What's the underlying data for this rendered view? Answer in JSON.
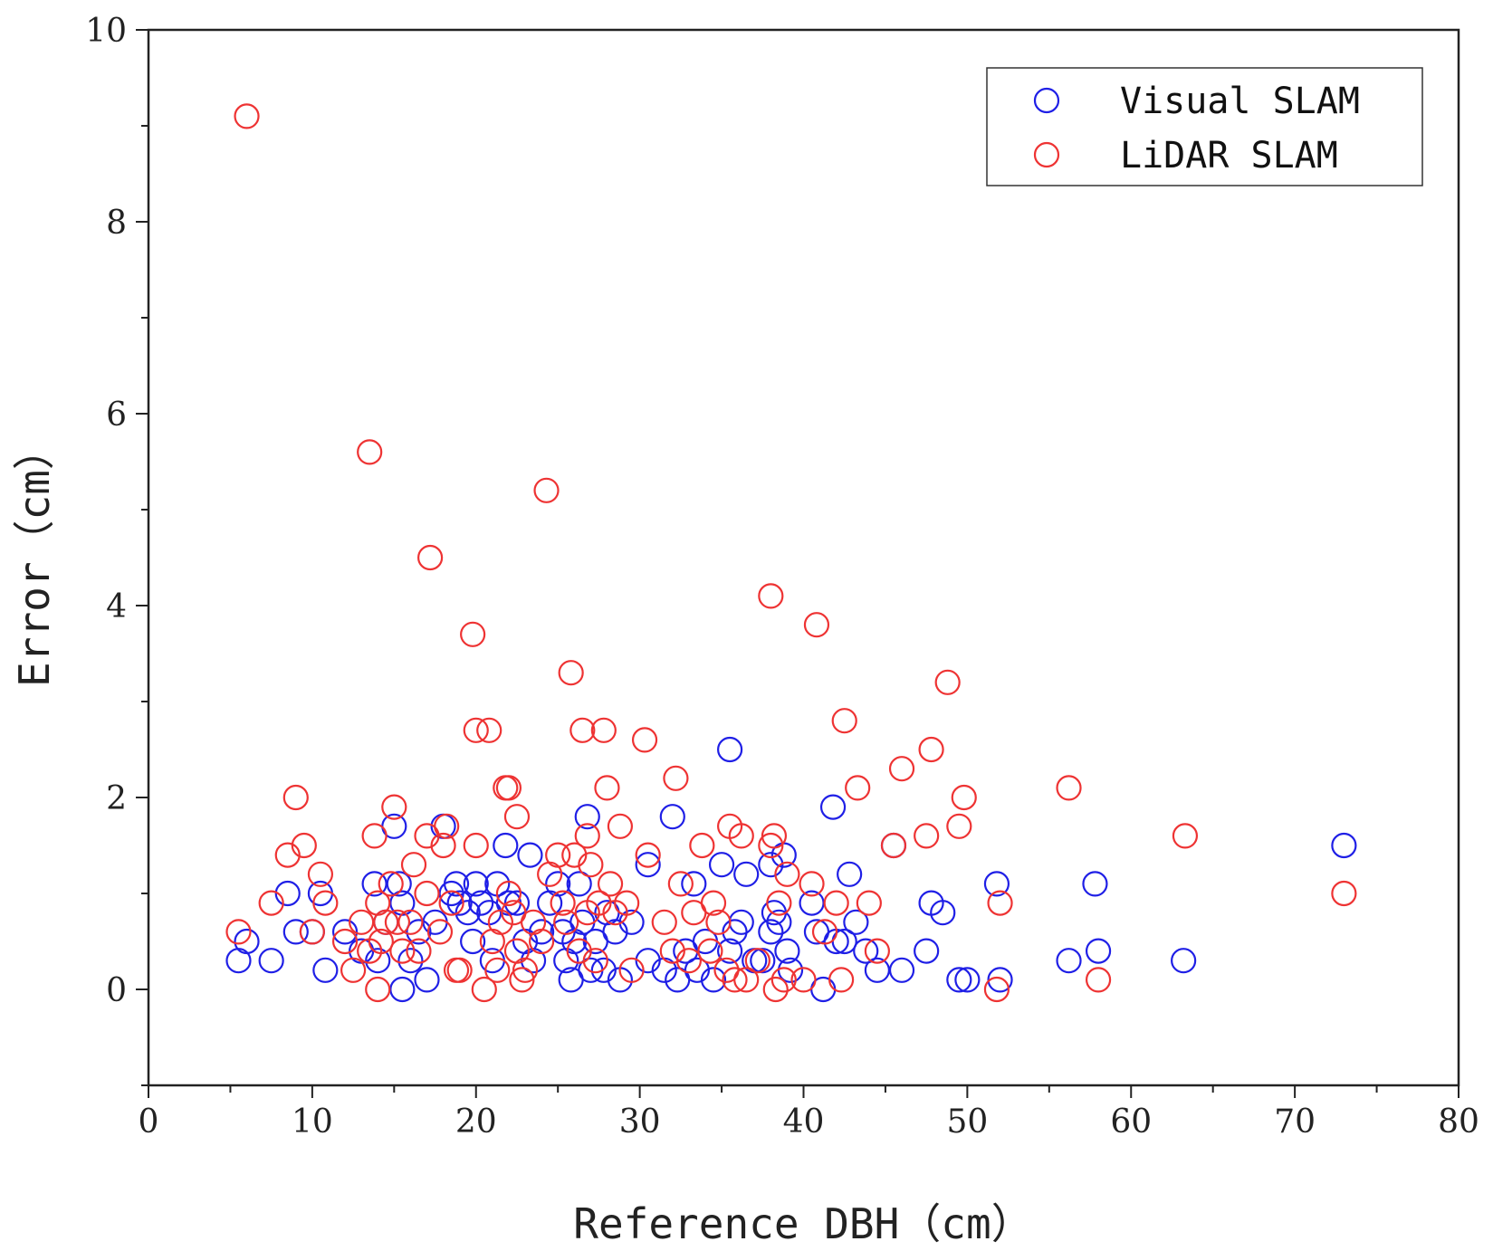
{
  "chart_data": {
    "type": "scatter",
    "title": "",
    "xlabel": "Reference DBH（cm）",
    "ylabel": "Error（cm）",
    "xlim": [
      0,
      80
    ],
    "ylim": [
      -1,
      10
    ],
    "x_ticks": [
      0,
      10,
      20,
      30,
      40,
      50,
      60,
      70,
      80
    ],
    "y_ticks": [
      0,
      2,
      4,
      6,
      8,
      10
    ],
    "x_tick_labels": [
      "0",
      "10",
      "20",
      "30",
      "40",
      "50",
      "60",
      "70",
      "80"
    ],
    "y_tick_labels": [
      "0",
      "2",
      "4",
      "6",
      "8",
      "10"
    ],
    "legend_position": "top-right",
    "series": [
      {
        "name": "Visual SLAM",
        "color": "#1f1fe6",
        "points": [
          [
            5.5,
            0.3
          ],
          [
            6.0,
            0.5
          ],
          [
            7.5,
            0.3
          ],
          [
            8.5,
            1.0
          ],
          [
            9.0,
            0.6
          ],
          [
            10.0,
            0.6
          ],
          [
            10.5,
            1.0
          ],
          [
            10.8,
            0.2
          ],
          [
            12.0,
            0.6
          ],
          [
            13.0,
            0.4
          ],
          [
            13.8,
            1.1
          ],
          [
            14.0,
            0.3
          ],
          [
            14.5,
            0.7
          ],
          [
            15.0,
            1.7
          ],
          [
            15.3,
            1.1
          ],
          [
            15.5,
            0.9
          ],
          [
            15.5,
            0.0
          ],
          [
            16.0,
            0.3
          ],
          [
            16.5,
            0.6
          ],
          [
            17.0,
            0.1
          ],
          [
            17.5,
            0.7
          ],
          [
            18.0,
            1.7
          ],
          [
            18.5,
            1.0
          ],
          [
            18.8,
            1.1
          ],
          [
            19.0,
            0.9
          ],
          [
            19.5,
            0.8
          ],
          [
            19.8,
            0.5
          ],
          [
            20.0,
            1.1
          ],
          [
            20.3,
            0.9
          ],
          [
            20.8,
            0.8
          ],
          [
            21.0,
            0.3
          ],
          [
            21.3,
            1.1
          ],
          [
            21.8,
            1.5
          ],
          [
            22.0,
            0.9
          ],
          [
            22.5,
            0.9
          ],
          [
            23.0,
            0.5
          ],
          [
            23.3,
            1.4
          ],
          [
            23.5,
            0.3
          ],
          [
            24.0,
            0.6
          ],
          [
            24.5,
            0.9
          ],
          [
            25.0,
            1.1
          ],
          [
            25.3,
            0.6
          ],
          [
            25.5,
            0.3
          ],
          [
            25.8,
            0.1
          ],
          [
            26.0,
            0.5
          ],
          [
            26.3,
            1.1
          ],
          [
            26.5,
            0.7
          ],
          [
            26.8,
            1.8
          ],
          [
            27.0,
            0.2
          ],
          [
            27.3,
            0.5
          ],
          [
            27.8,
            0.2
          ],
          [
            28.0,
            0.8
          ],
          [
            28.5,
            0.6
          ],
          [
            28.8,
            0.1
          ],
          [
            29.5,
            0.7
          ],
          [
            30.5,
            1.3
          ],
          [
            30.5,
            0.3
          ],
          [
            31.5,
            0.2
          ],
          [
            32.0,
            1.8
          ],
          [
            32.3,
            0.1
          ],
          [
            32.8,
            0.4
          ],
          [
            33.3,
            1.1
          ],
          [
            33.5,
            0.2
          ],
          [
            34.0,
            0.5
          ],
          [
            34.5,
            0.1
          ],
          [
            35.0,
            1.3
          ],
          [
            35.5,
            2.5
          ],
          [
            35.5,
            0.4
          ],
          [
            35.8,
            0.6
          ],
          [
            36.2,
            0.7
          ],
          [
            36.5,
            1.2
          ],
          [
            37.0,
            0.3
          ],
          [
            37.5,
            0.3
          ],
          [
            38.0,
            1.3
          ],
          [
            38.0,
            0.6
          ],
          [
            38.2,
            0.8
          ],
          [
            38.5,
            0.7
          ],
          [
            38.8,
            1.4
          ],
          [
            39.0,
            0.4
          ],
          [
            39.2,
            0.2
          ],
          [
            40.5,
            0.9
          ],
          [
            40.8,
            0.6
          ],
          [
            41.2,
            0.0
          ],
          [
            41.8,
            1.9
          ],
          [
            42.0,
            0.5
          ],
          [
            42.5,
            0.5
          ],
          [
            42.8,
            1.2
          ],
          [
            43.2,
            0.7
          ],
          [
            43.8,
            0.4
          ],
          [
            44.5,
            0.2
          ],
          [
            45.5,
            1.5
          ],
          [
            46.0,
            0.2
          ],
          [
            47.5,
            0.4
          ],
          [
            47.8,
            0.9
          ],
          [
            48.5,
            0.8
          ],
          [
            49.5,
            0.1
          ],
          [
            50.0,
            0.1
          ],
          [
            51.8,
            1.1
          ],
          [
            52.0,
            0.1
          ],
          [
            56.2,
            0.3
          ],
          [
            57.8,
            1.1
          ],
          [
            58.0,
            0.4
          ],
          [
            63.2,
            0.3
          ],
          [
            73.0,
            1.5
          ]
        ]
      },
      {
        "name": "LiDAR SLAM",
        "color": "#ee3333",
        "points": [
          [
            5.5,
            0.6
          ],
          [
            6.0,
            9.1
          ],
          [
            7.5,
            0.9
          ],
          [
            8.5,
            1.4
          ],
          [
            9.0,
            2.0
          ],
          [
            9.5,
            1.5
          ],
          [
            10.0,
            0.6
          ],
          [
            10.5,
            1.2
          ],
          [
            10.8,
            0.9
          ],
          [
            12.0,
            0.5
          ],
          [
            12.5,
            0.2
          ],
          [
            13.0,
            0.7
          ],
          [
            13.5,
            5.6
          ],
          [
            13.5,
            0.4
          ],
          [
            13.8,
            1.6
          ],
          [
            14.0,
            0.9
          ],
          [
            14.0,
            0.0
          ],
          [
            14.2,
            0.5
          ],
          [
            14.5,
            0.7
          ],
          [
            14.8,
            1.1
          ],
          [
            15.0,
            1.9
          ],
          [
            15.2,
            0.7
          ],
          [
            15.5,
            0.4
          ],
          [
            16.0,
            0.7
          ],
          [
            16.2,
            1.3
          ],
          [
            16.5,
            0.4
          ],
          [
            17.0,
            1.0
          ],
          [
            17.0,
            1.6
          ],
          [
            17.2,
            4.5
          ],
          [
            17.8,
            0.6
          ],
          [
            18.0,
            1.5
          ],
          [
            18.2,
            1.7
          ],
          [
            18.5,
            0.9
          ],
          [
            18.8,
            0.2
          ],
          [
            19.0,
            0.2
          ],
          [
            19.8,
            3.7
          ],
          [
            20.0,
            1.5
          ],
          [
            20.0,
            2.7
          ],
          [
            20.5,
            0.0
          ],
          [
            20.8,
            2.7
          ],
          [
            21.0,
            0.5
          ],
          [
            21.3,
            0.2
          ],
          [
            21.5,
            0.7
          ],
          [
            21.8,
            2.1
          ],
          [
            22.0,
            1.0
          ],
          [
            22.0,
            2.1
          ],
          [
            22.3,
            0.8
          ],
          [
            22.5,
            1.8
          ],
          [
            22.5,
            0.4
          ],
          [
            22.8,
            0.1
          ],
          [
            23.0,
            0.2
          ],
          [
            23.5,
            0.7
          ],
          [
            24.0,
            0.5
          ],
          [
            24.3,
            5.2
          ],
          [
            24.5,
            1.2
          ],
          [
            25.0,
            1.4
          ],
          [
            25.3,
            0.9
          ],
          [
            25.5,
            0.7
          ],
          [
            25.8,
            3.3
          ],
          [
            26.0,
            1.4
          ],
          [
            26.3,
            0.4
          ],
          [
            26.5,
            2.7
          ],
          [
            26.8,
            1.6
          ],
          [
            26.8,
            0.8
          ],
          [
            27.0,
            1.3
          ],
          [
            27.3,
            0.3
          ],
          [
            27.5,
            0.9
          ],
          [
            27.8,
            2.7
          ],
          [
            28.0,
            2.1
          ],
          [
            28.2,
            1.1
          ],
          [
            28.5,
            0.8
          ],
          [
            28.8,
            1.7
          ],
          [
            29.2,
            0.9
          ],
          [
            29.5,
            0.2
          ],
          [
            30.3,
            2.6
          ],
          [
            30.5,
            1.4
          ],
          [
            31.5,
            0.7
          ],
          [
            32.0,
            0.4
          ],
          [
            32.2,
            2.2
          ],
          [
            32.5,
            1.1
          ],
          [
            33.0,
            0.3
          ],
          [
            33.3,
            0.8
          ],
          [
            33.8,
            1.5
          ],
          [
            34.3,
            0.4
          ],
          [
            34.5,
            0.9
          ],
          [
            34.8,
            0.7
          ],
          [
            35.3,
            0.2
          ],
          [
            35.5,
            1.7
          ],
          [
            35.8,
            0.1
          ],
          [
            36.2,
            1.6
          ],
          [
            36.5,
            0.1
          ],
          [
            37.2,
            0.3
          ],
          [
            38.0,
            4.1
          ],
          [
            38.0,
            1.5
          ],
          [
            38.2,
            1.6
          ],
          [
            38.3,
            0.0
          ],
          [
            38.5,
            0.9
          ],
          [
            38.8,
            0.1
          ],
          [
            39.0,
            1.2
          ],
          [
            40.0,
            0.1
          ],
          [
            40.5,
            1.1
          ],
          [
            40.8,
            3.8
          ],
          [
            41.3,
            0.6
          ],
          [
            42.0,
            0.9
          ],
          [
            42.3,
            0.1
          ],
          [
            42.5,
            2.8
          ],
          [
            43.3,
            2.1
          ],
          [
            44.0,
            0.9
          ],
          [
            44.5,
            0.4
          ],
          [
            45.5,
            1.5
          ],
          [
            46.0,
            2.3
          ],
          [
            47.5,
            1.6
          ],
          [
            47.8,
            2.5
          ],
          [
            48.8,
            3.2
          ],
          [
            49.5,
            1.7
          ],
          [
            49.8,
            2.0
          ],
          [
            51.8,
            0.0
          ],
          [
            52.0,
            0.9
          ],
          [
            56.2,
            2.1
          ],
          [
            58.0,
            0.1
          ],
          [
            63.3,
            1.6
          ],
          [
            73.0,
            1.0
          ]
        ]
      }
    ]
  }
}
